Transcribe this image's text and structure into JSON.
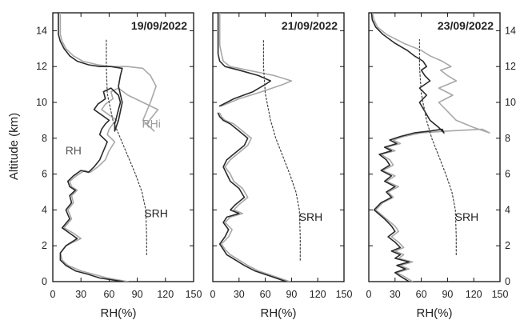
{
  "figure": {
    "y_axis_label": "Altitude (km)",
    "x_axis_label": "RH(%)"
  },
  "chart_data": [
    {
      "type": "line",
      "title": "19/09/2022",
      "xlabel": "RH(%)",
      "ylabel": "Altitude (km)",
      "xlim": [
        0,
        150
      ],
      "ylim": [
        0,
        15
      ],
      "xticks": [
        0,
        30,
        60,
        90,
        120,
        150
      ],
      "yticks": [
        0,
        2,
        4,
        6,
        8,
        10,
        12,
        14
      ],
      "grid": false,
      "annotations": [
        {
          "text": "RH",
          "x": 22,
          "y": 7.1,
          "color": "#555555"
        },
        {
          "text": "RHi",
          "x": 105,
          "y": 8.6,
          "color": "#9a9a9a"
        },
        {
          "text": "SRH",
          "x": 110,
          "y": 3.6,
          "color": "#222222"
        }
      ],
      "series": [
        {
          "role": "RHi",
          "color": "#a8a8a8",
          "width": 1.6,
          "x": [
            80,
            58,
            44,
            30,
            16,
            10,
            8,
            14,
            30,
            22,
            12,
            20,
            16,
            22,
            20,
            26,
            20,
            18,
            25,
            34,
            40,
            48,
            56,
            60,
            66,
            58,
            60,
            64,
            68,
            60,
            52,
            56,
            64,
            62,
            70,
            80,
            96,
            112,
            106,
            100,
            108,
            96,
            104,
            110,
            104,
            96,
            80,
            62,
            48,
            32,
            22,
            14,
            10,
            8,
            8,
            8
          ],
          "y": [
            0,
            0.2,
            0.4,
            0.6,
            0.9,
            1.2,
            1.6,
            2.0,
            2.4,
            2.7,
            3.0,
            3.5,
            4.0,
            4.4,
            4.8,
            5.1,
            5.3,
            5.6,
            5.9,
            6.2,
            6.1,
            6.4,
            6.8,
            7.3,
            7.8,
            8.2,
            8.5,
            8.8,
            9.0,
            9.3,
            9.6,
            9.9,
            10.2,
            10.6,
            10.8,
            10.4,
            10.0,
            9.6,
            9.2,
            8.8,
            8.4,
            9.0,
            10.0,
            10.9,
            11.5,
            11.9,
            12.0,
            12.0,
            12.1,
            12.3,
            12.6,
            13.0,
            13.4,
            13.8,
            14.3,
            15
          ]
        },
        {
          "role": "RH",
          "color": "#2a2a2a",
          "width": 1.6,
          "x": [
            75,
            50,
            38,
            24,
            14,
            8,
            8,
            14,
            26,
            18,
            10,
            18,
            14,
            20,
            18,
            24,
            18,
            16,
            22,
            30,
            38,
            44,
            50,
            54,
            58,
            50,
            52,
            56,
            60,
            52,
            44,
            48,
            56,
            54,
            62,
            70,
            72,
            70,
            68,
            66,
            66,
            70,
            74,
            70,
            72,
            74,
            62,
            50,
            38,
            26,
            18,
            12,
            8,
            6,
            6,
            6
          ],
          "y": [
            0,
            0.2,
            0.4,
            0.6,
            0.9,
            1.2,
            1.6,
            2.0,
            2.4,
            2.7,
            3.0,
            3.5,
            4.0,
            4.4,
            4.8,
            5.1,
            5.3,
            5.6,
            5.9,
            6.2,
            6.1,
            6.4,
            6.8,
            7.3,
            7.8,
            8.2,
            8.5,
            8.8,
            9.0,
            9.3,
            9.6,
            9.9,
            10.2,
            10.6,
            10.8,
            10.4,
            10.0,
            9.6,
            9.2,
            8.8,
            8.4,
            9.0,
            10.0,
            10.9,
            11.5,
            11.9,
            12.0,
            12.0,
            12.1,
            12.3,
            12.6,
            13.0,
            13.4,
            13.8,
            14.3,
            15
          ]
        },
        {
          "role": "SRH",
          "color": "#444444",
          "dashed": true,
          "width": 1.2,
          "x": [
            100,
            100,
            99,
            95,
            88,
            80,
            72,
            64,
            58,
            57,
            57
          ],
          "y": [
            1.5,
            2.5,
            4.0,
            5.0,
            6.0,
            7.0,
            8.0,
            9.0,
            10.5,
            12.0,
            13.5
          ]
        }
      ]
    },
    {
      "type": "line",
      "title": "21/09/2022",
      "xlabel": "RH(%)",
      "ylabel": "",
      "xlim": [
        0,
        150
      ],
      "ylim": [
        0,
        15
      ],
      "xticks": [
        0,
        30,
        60,
        90,
        120,
        150
      ],
      "yticks": [
        0,
        2,
        4,
        6,
        8,
        10,
        12,
        14
      ],
      "grid": false,
      "annotations": [
        {
          "text": "SRH",
          "x": 112,
          "y": 3.4,
          "color": "#222222"
        }
      ],
      "series": [
        {
          "role": "RHi",
          "color": "#a8a8a8",
          "width": 1.6,
          "x": [
            88,
            70,
            52,
            40,
            30,
            20,
            14,
            10,
            18,
            22,
            14,
            20,
            34,
            24,
            30,
            40,
            34,
            24,
            20,
            14,
            20,
            30,
            40,
            44,
            34,
            24,
            14,
            10,
            8,
            null,
            10,
            30,
            56,
            80,
            90,
            70,
            40,
            20,
            12,
            10,
            8,
            8,
            8,
            8
          ],
          "y": [
            0,
            0.3,
            0.6,
            0.9,
            1.2,
            1.5,
            1.8,
            2.1,
            2.5,
            2.9,
            3.3,
            3.6,
            3.8,
            4.0,
            4.3,
            4.7,
            5.2,
            5.6,
            6.0,
            6.4,
            6.8,
            7.2,
            7.6,
            8.0,
            8.4,
            8.8,
            9.0,
            9.2,
            9.4,
            null,
            9.8,
            10.2,
            10.6,
            11.0,
            11.2,
            11.5,
            11.8,
            12.0,
            12.3,
            12.7,
            13.2,
            13.7,
            14.3,
            15
          ]
        },
        {
          "role": "RH",
          "color": "#2a2a2a",
          "width": 1.6,
          "x": [
            84,
            66,
            48,
            36,
            26,
            16,
            12,
            8,
            14,
            18,
            12,
            16,
            30,
            20,
            26,
            36,
            30,
            20,
            16,
            12,
            16,
            26,
            36,
            40,
            30,
            20,
            12,
            8,
            6,
            null,
            8,
            24,
            46,
            60,
            66,
            52,
            30,
            14,
            8,
            6,
            6,
            6,
            6,
            6
          ],
          "y": [
            0,
            0.3,
            0.6,
            0.9,
            1.2,
            1.5,
            1.8,
            2.1,
            2.5,
            2.9,
            3.3,
            3.6,
            3.8,
            4.0,
            4.3,
            4.7,
            5.2,
            5.6,
            6.0,
            6.4,
            6.8,
            7.2,
            7.6,
            8.0,
            8.4,
            8.8,
            9.0,
            9.2,
            9.4,
            null,
            9.8,
            10.2,
            10.6,
            11.0,
            11.2,
            11.5,
            11.8,
            12.0,
            12.3,
            12.7,
            13.2,
            13.7,
            14.3,
            15
          ]
        },
        {
          "role": "SRH",
          "color": "#444444",
          "dashed": true,
          "width": 1.2,
          "x": [
            100,
            100,
            99,
            95,
            88,
            80,
            72,
            66,
            60,
            58,
            58
          ],
          "y": [
            1.2,
            2.5,
            4.0,
            5.0,
            6.0,
            7.0,
            8.0,
            9.0,
            10.5,
            12.0,
            13.5
          ]
        }
      ]
    },
    {
      "type": "line",
      "title": "23/09/2022",
      "xlabel": "RH(%)",
      "ylabel": "",
      "xlim": [
        0,
        150
      ],
      "ylim": [
        0,
        15
      ],
      "xticks": [
        0,
        30,
        60,
        90,
        120,
        150
      ],
      "yticks": [
        0,
        2,
        4,
        6,
        8,
        10,
        12,
        14
      ],
      "grid": false,
      "annotations": [
        {
          "text": "SRH",
          "x": 112,
          "y": 3.4,
          "color": "#222222"
        }
      ],
      "series": [
        {
          "role": "RHi",
          "color": "#a8a8a8",
          "width": 1.6,
          "x": [
            50,
            40,
            32,
            46,
            36,
            50,
            34,
            40,
            30,
            40,
            34,
            26,
            34,
            30,
            20,
            8,
            16,
            28,
            22,
            34,
            20,
            30,
            16,
            28,
            24,
            14,
            30,
            20,
            36,
            28,
            40,
            60,
            90,
            130,
            138,
            120,
            100,
            90,
            80,
            96,
            80,
            100,
            90,
            82,
            94,
            84,
            70,
            60,
            40,
            20,
            10,
            6,
            4
          ],
          "y": [
            0,
            0.3,
            0.5,
            0.7,
            0.9,
            1.1,
            1.3,
            1.5,
            1.7,
            1.9,
            2.2,
            2.5,
            2.8,
            3.1,
            3.5,
            4.0,
            4.4,
            4.7,
            5.0,
            5.3,
            5.6,
            5.9,
            6.2,
            6.5,
            6.8,
            7.1,
            7.3,
            7.5,
            7.7,
            7.9,
            8.1,
            8.3,
            8.4,
            8.5,
            8.3,
            8.6,
            9.0,
            9.5,
            10.0,
            10.4,
            10.8,
            11.2,
            11.5,
            11.8,
            12.0,
            12.3,
            12.6,
            12.9,
            13.3,
            13.8,
            14.2,
            14.6,
            15
          ]
        },
        {
          "role": "RH",
          "color": "#2a2a2a",
          "width": 1.6,
          "x": [
            46,
            36,
            30,
            42,
            32,
            46,
            30,
            36,
            26,
            36,
            30,
            22,
            30,
            26,
            18,
            6,
            14,
            26,
            20,
            30,
            18,
            26,
            14,
            24,
            20,
            12,
            26,
            18,
            32,
            24,
            36,
            52,
            70,
            84,
            86,
            80,
            70,
            64,
            58,
            66,
            58,
            70,
            64,
            60,
            66,
            62,
            52,
            44,
            30,
            16,
            8,
            4,
            3
          ],
          "y": [
            0,
            0.3,
            0.5,
            0.7,
            0.9,
            1.1,
            1.3,
            1.5,
            1.7,
            1.9,
            2.2,
            2.5,
            2.8,
            3.1,
            3.5,
            4.0,
            4.4,
            4.7,
            5.0,
            5.3,
            5.6,
            5.9,
            6.2,
            6.5,
            6.8,
            7.1,
            7.3,
            7.5,
            7.7,
            7.9,
            8.1,
            8.3,
            8.4,
            8.5,
            8.3,
            8.6,
            9.0,
            9.5,
            10.0,
            10.4,
            10.8,
            11.2,
            11.5,
            11.8,
            12.0,
            12.3,
            12.6,
            12.9,
            13.3,
            13.8,
            14.2,
            14.6,
            15
          ]
        },
        {
          "role": "SRH",
          "color": "#444444",
          "dashed": true,
          "width": 1.2,
          "x": [
            100,
            100,
            99,
            95,
            88,
            80,
            72,
            66,
            60,
            58,
            58
          ],
          "y": [
            1.5,
            2.5,
            4.0,
            5.0,
            6.0,
            7.0,
            8.0,
            9.0,
            10.5,
            12.0,
            13.5
          ]
        }
      ]
    }
  ]
}
